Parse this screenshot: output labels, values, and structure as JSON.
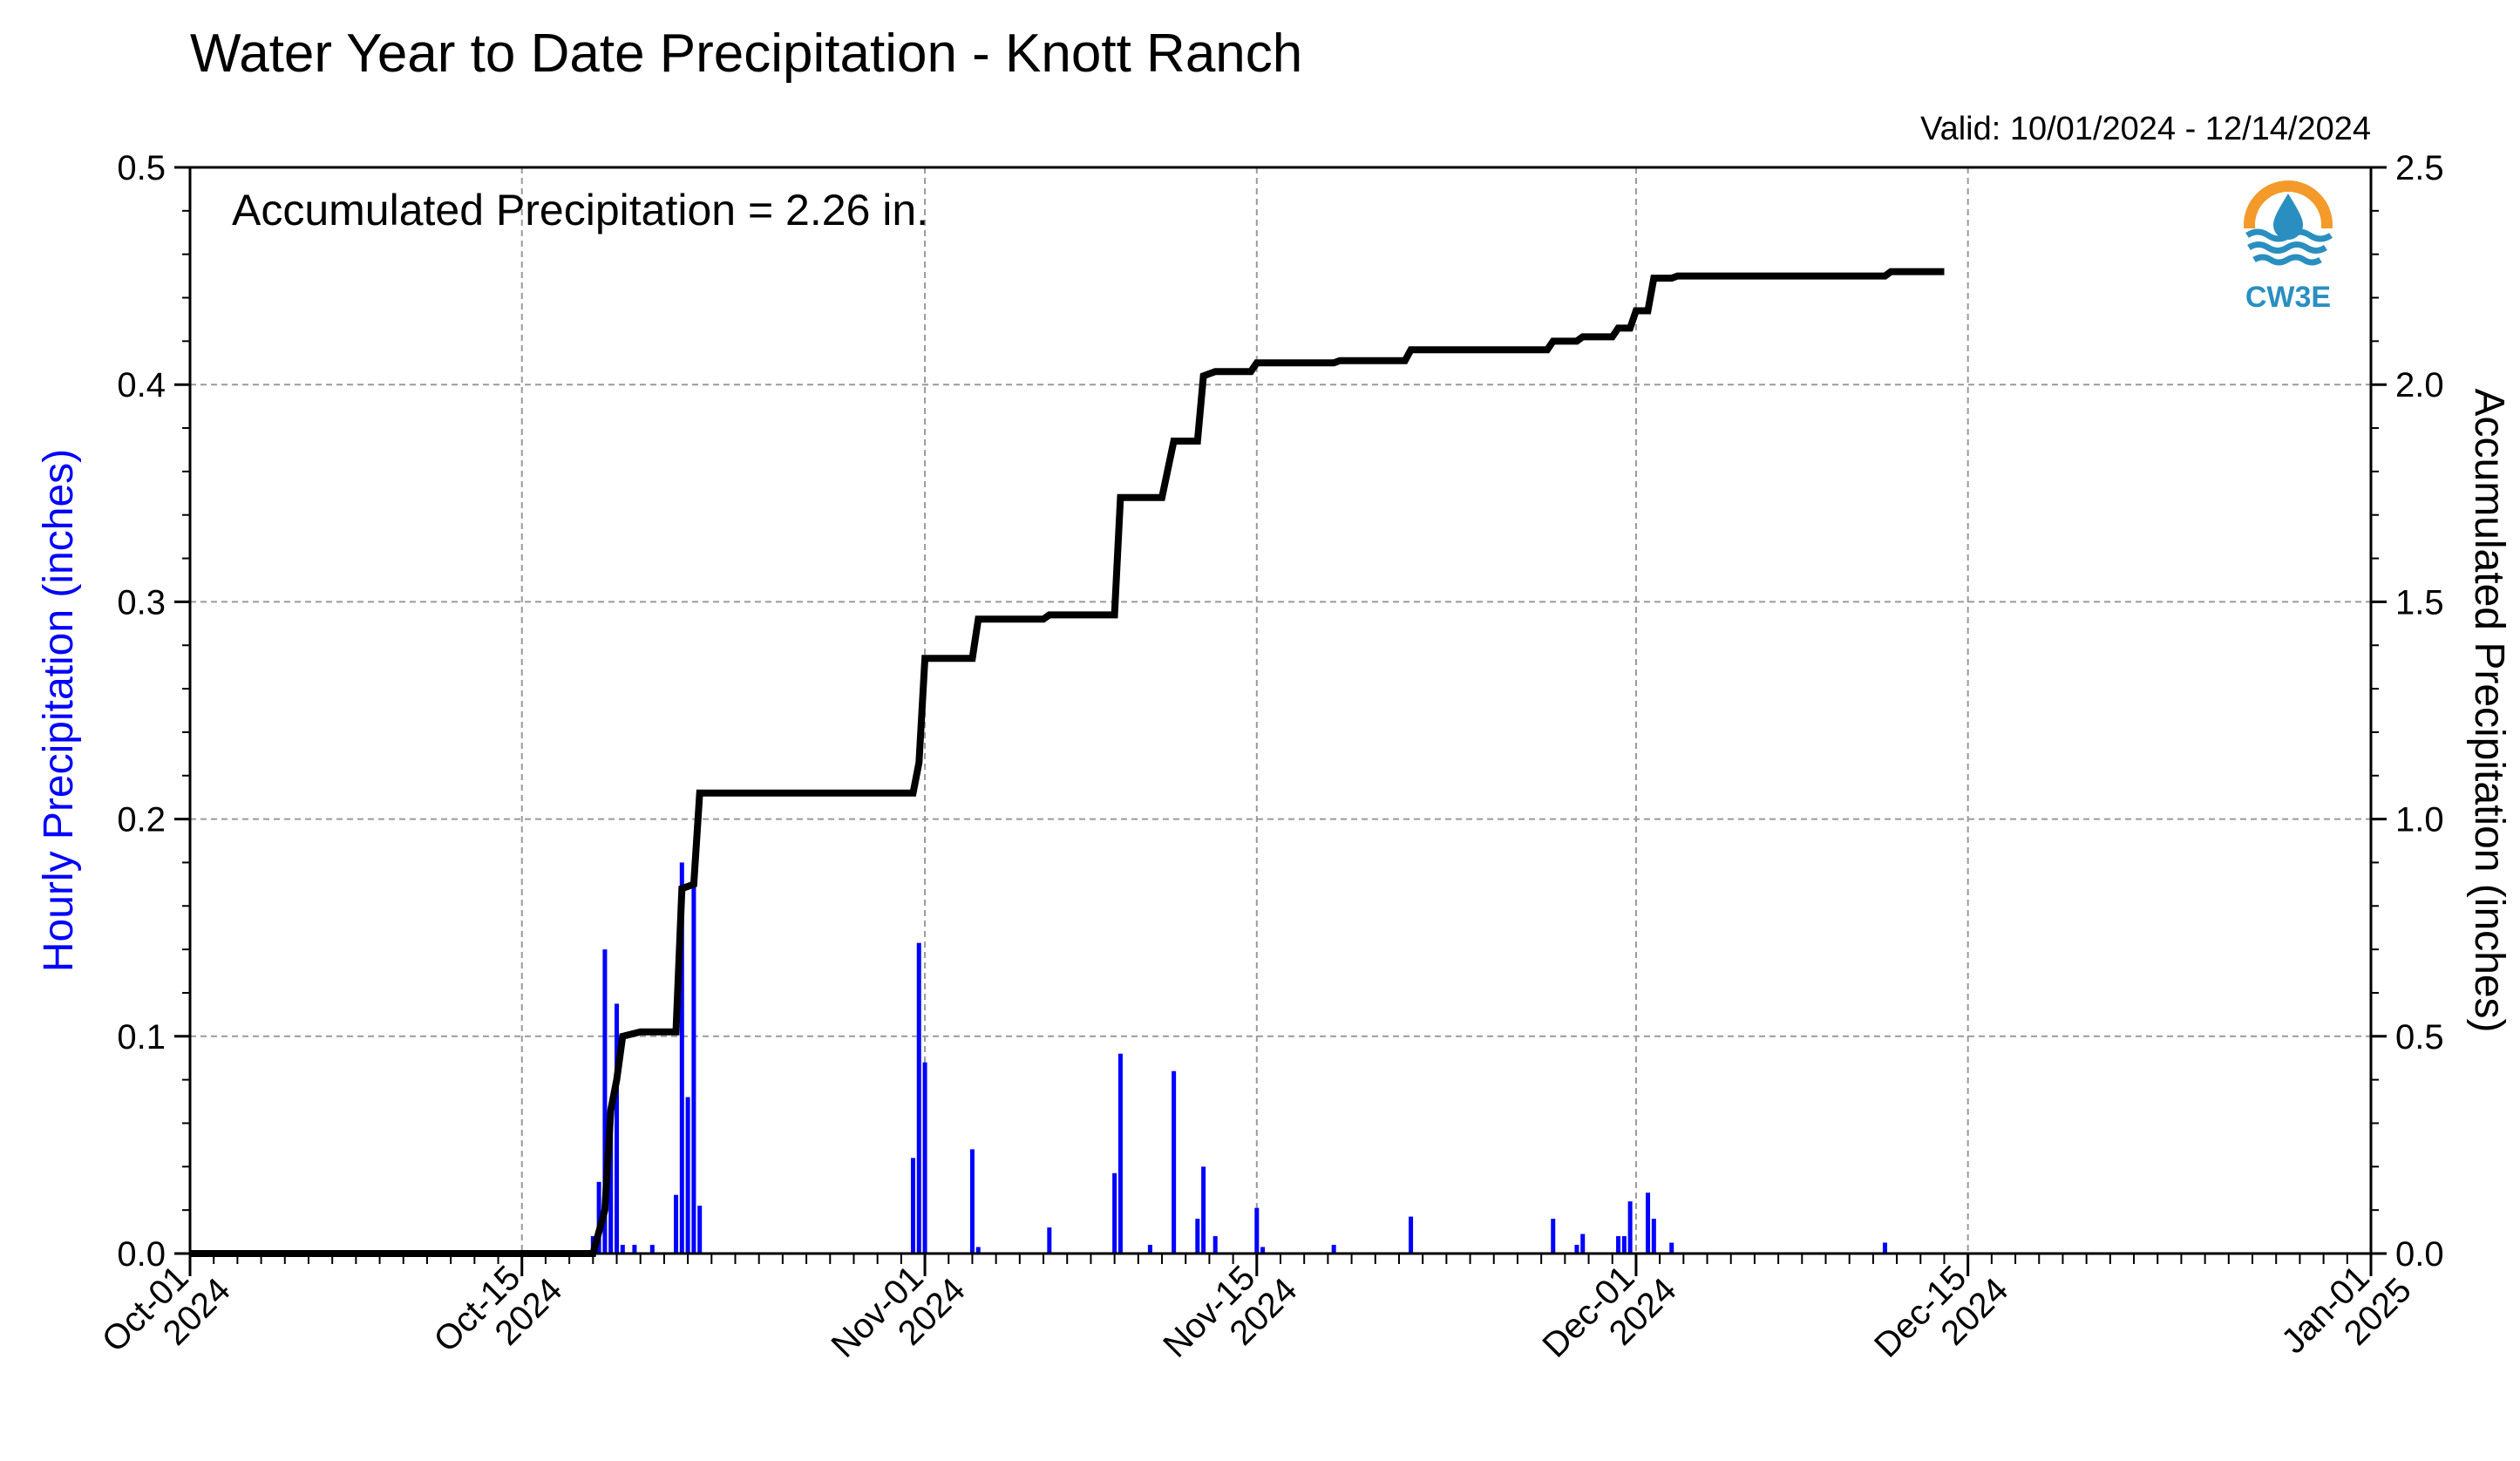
{
  "chart_data": {
    "type": "bar+line",
    "title": "Water Year to Date Precipitation - Knott Ranch",
    "valid_text": "Valid: 10/01/2024 - 12/14/2024",
    "annotation": "Accumulated Precipitation = 2.26 in.",
    "logo_text": "CW3E",
    "xlim": [
      "2024-10-01",
      "2025-01-01"
    ],
    "x_ticks": [
      {
        "date": "2024-10-01",
        "line1": "Oct-01",
        "line2": "2024"
      },
      {
        "date": "2024-10-15",
        "line1": "Oct-15",
        "line2": "2024"
      },
      {
        "date": "2024-11-01",
        "line1": "Nov-01",
        "line2": "2024"
      },
      {
        "date": "2024-11-15",
        "line1": "Nov-15",
        "line2": "2024"
      },
      {
        "date": "2024-12-01",
        "line1": "Dec-01",
        "line2": "2024"
      },
      {
        "date": "2024-12-15",
        "line1": "Dec-15",
        "line2": "2024"
      },
      {
        "date": "2025-01-01",
        "line1": "Jan-01",
        "line2": "2025"
      }
    ],
    "left_axis": {
      "label": "Hourly Precipitation (inches)",
      "ylim": [
        0,
        0.5
      ],
      "ticks": [
        "0.0",
        "0.1",
        "0.2",
        "0.3",
        "0.4",
        "0.5"
      ],
      "color": "#0000ff"
    },
    "right_axis": {
      "label": "Accumulated Precipitation (inches)",
      "ylim": [
        0,
        2.5
      ],
      "ticks": [
        "0.0",
        "0.5",
        "1.0",
        "1.5",
        "2.0",
        "2.5"
      ],
      "color": "#000000"
    },
    "grid": true,
    "series": [
      {
        "kind": "bar",
        "axis": "left",
        "color": "#0000ff",
        "points": [
          [
            "2024-10-18 00:00",
            0.008
          ],
          [
            "2024-10-18 06:00",
            0.033
          ],
          [
            "2024-10-18 12:00",
            0.14
          ],
          [
            "2024-10-18 18:00",
            0.067
          ],
          [
            "2024-10-19 00:00",
            0.115
          ],
          [
            "2024-10-19 06:00",
            0.004
          ],
          [
            "2024-10-19 18:00",
            0.004
          ],
          [
            "2024-10-20 12:00",
            0.004
          ],
          [
            "2024-10-21 12:00",
            0.027
          ],
          [
            "2024-10-21 18:00",
            0.18
          ],
          [
            "2024-10-22 00:00",
            0.072
          ],
          [
            "2024-10-22 06:00",
            0.17
          ],
          [
            "2024-10-22 12:00",
            0.022
          ],
          [
            "2024-10-31 12:00",
            0.044
          ],
          [
            "2024-10-31 18:00",
            0.143
          ],
          [
            "2024-11-01 00:00",
            0.088
          ],
          [
            "2024-11-03 00:00",
            0.048
          ],
          [
            "2024-11-03 06:00",
            0.003
          ],
          [
            "2024-11-06 06:00",
            0.012
          ],
          [
            "2024-11-09 00:00",
            0.037
          ],
          [
            "2024-11-09 06:00",
            0.092
          ],
          [
            "2024-11-10 12:00",
            0.004
          ],
          [
            "2024-11-11 12:00",
            0.084
          ],
          [
            "2024-11-12 12:00",
            0.016
          ],
          [
            "2024-11-12 18:00",
            0.04
          ],
          [
            "2024-11-13 06:00",
            0.008
          ],
          [
            "2024-11-15 00:00",
            0.021
          ],
          [
            "2024-11-15 06:00",
            0.003
          ],
          [
            "2024-11-18 06:00",
            0.004
          ],
          [
            "2024-11-21 12:00",
            0.017
          ],
          [
            "2024-11-27 12:00",
            0.016
          ],
          [
            "2024-11-28 12:00",
            0.004
          ],
          [
            "2024-11-28 18:00",
            0.009
          ],
          [
            "2024-11-30 06:00",
            0.008
          ],
          [
            "2024-11-30 12:00",
            0.008
          ],
          [
            "2024-11-30 18:00",
            0.024
          ],
          [
            "2024-12-01 12:00",
            0.028
          ],
          [
            "2024-12-01 18:00",
            0.016
          ],
          [
            "2024-12-02 12:00",
            0.005
          ],
          [
            "2024-12-11 12:00",
            0.005
          ]
        ]
      },
      {
        "kind": "line",
        "axis": "right",
        "color": "#000000",
        "points": [
          [
            "2024-10-01 00:00",
            0.0
          ],
          [
            "2024-10-18 00:00",
            0.0
          ],
          [
            "2024-10-18 06:00",
            0.05
          ],
          [
            "2024-10-18 12:00",
            0.1
          ],
          [
            "2024-10-18 18:00",
            0.33
          ],
          [
            "2024-10-19 00:00",
            0.4
          ],
          [
            "2024-10-19 06:00",
            0.5
          ],
          [
            "2024-10-20 00:00",
            0.51
          ],
          [
            "2024-10-21 12:00",
            0.51
          ],
          [
            "2024-10-21 18:00",
            0.84
          ],
          [
            "2024-10-22 06:00",
            0.85
          ],
          [
            "2024-10-22 12:00",
            1.06
          ],
          [
            "2024-10-31 12:00",
            1.06
          ],
          [
            "2024-10-31 18:00",
            1.13
          ],
          [
            "2024-11-01 00:00",
            1.37
          ],
          [
            "2024-11-03 00:00",
            1.37
          ],
          [
            "2024-11-03 06:00",
            1.46
          ],
          [
            "2024-11-06 00:00",
            1.46
          ],
          [
            "2024-11-06 06:00",
            1.47
          ],
          [
            "2024-11-09 00:00",
            1.47
          ],
          [
            "2024-11-09 06:00",
            1.74
          ],
          [
            "2024-11-11 00:00",
            1.74
          ],
          [
            "2024-11-11 12:00",
            1.87
          ],
          [
            "2024-11-12 12:00",
            1.87
          ],
          [
            "2024-11-12 18:00",
            2.02
          ],
          [
            "2024-11-13 06:00",
            2.03
          ],
          [
            "2024-11-14 18:00",
            2.03
          ],
          [
            "2024-11-15 00:00",
            2.05
          ],
          [
            "2024-11-18 06:00",
            2.05
          ],
          [
            "2024-11-18 12:00",
            2.055
          ],
          [
            "2024-11-21 06:00",
            2.055
          ],
          [
            "2024-11-21 12:00",
            2.08
          ],
          [
            "2024-11-27 06:00",
            2.08
          ],
          [
            "2024-11-27 12:00",
            2.1
          ],
          [
            "2024-11-28 12:00",
            2.1
          ],
          [
            "2024-11-28 18:00",
            2.11
          ],
          [
            "2024-11-30 00:00",
            2.11
          ],
          [
            "2024-11-30 06:00",
            2.13
          ],
          [
            "2024-11-30 18:00",
            2.13
          ],
          [
            "2024-12-01 00:00",
            2.17
          ],
          [
            "2024-12-01 12:00",
            2.17
          ],
          [
            "2024-12-01 18:00",
            2.245
          ],
          [
            "2024-12-02 12:00",
            2.245
          ],
          [
            "2024-12-02 18:00",
            2.25
          ],
          [
            "2024-12-11 12:00",
            2.25
          ],
          [
            "2024-12-11 18:00",
            2.26
          ],
          [
            "2024-12-14 00:00",
            2.26
          ]
        ]
      }
    ]
  }
}
